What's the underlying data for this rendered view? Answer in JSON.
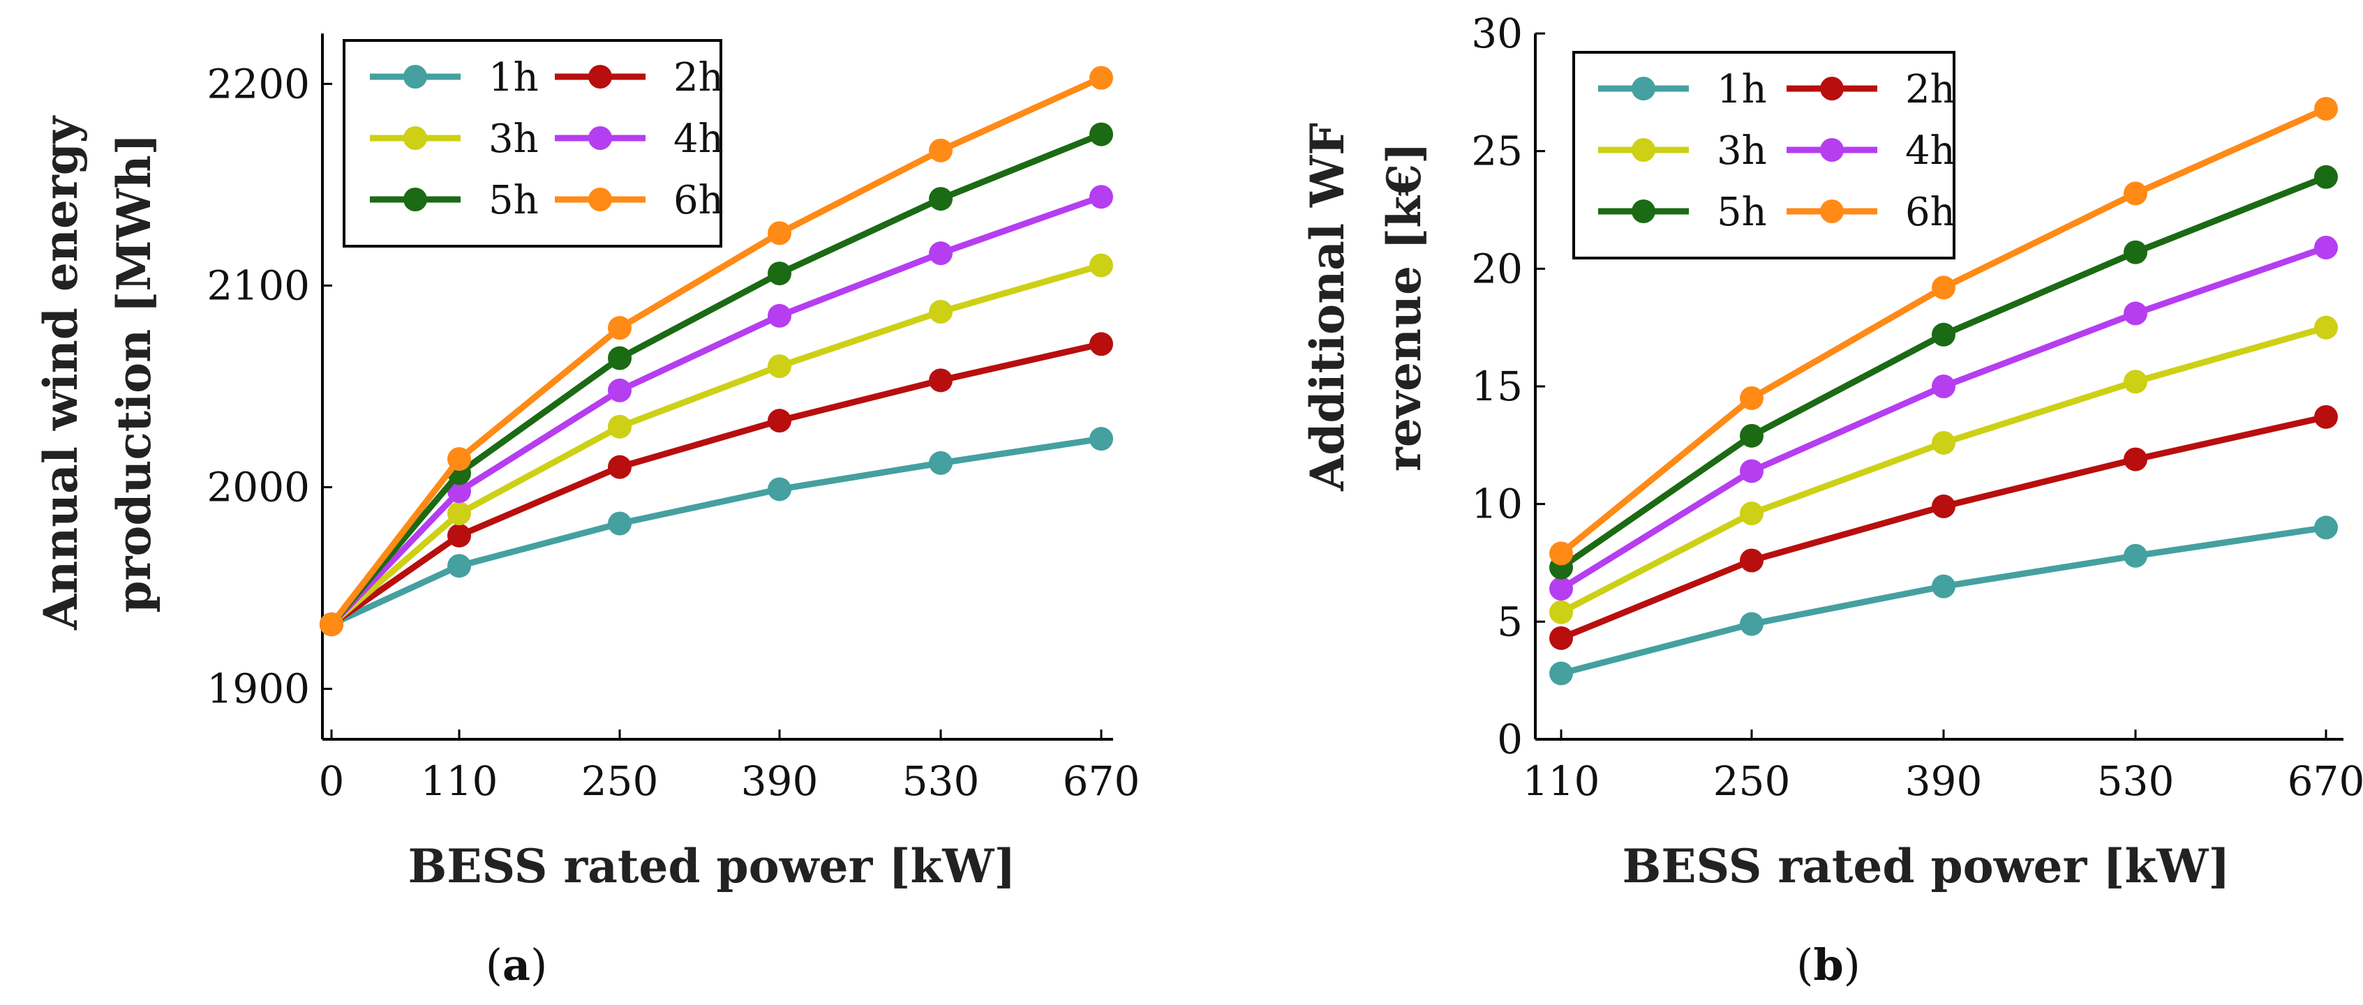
{
  "colors": {
    "1h": "#45a0a0",
    "2h": "#b80e0e",
    "3h": "#cdd015",
    "4h": "#b53ef0",
    "5h": "#1b6a14",
    "6h": "#ff8a16"
  },
  "chart_data": [
    {
      "type": "line",
      "panel_label": "a",
      "title": "",
      "xlabel": "BESS rated power [kW]",
      "ylabel_lines": [
        "Annual wind energy",
        "production [MWh]"
      ],
      "categories": [
        "0",
        "110",
        "250",
        "390",
        "530",
        "670"
      ],
      "ylim": [
        1875,
        2225
      ],
      "yticks": [
        1900,
        2000,
        2100,
        2200
      ],
      "legend_position": "top-left",
      "series": [
        {
          "name": "1h",
          "values": [
            1932,
            1961,
            1982,
            1999,
            2012,
            2024
          ]
        },
        {
          "name": "2h",
          "values": [
            1932,
            1976,
            2010,
            2033,
            2053,
            2071
          ]
        },
        {
          "name": "3h",
          "values": [
            1932,
            1987,
            2030,
            2060,
            2087,
            2110
          ]
        },
        {
          "name": "4h",
          "values": [
            1932,
            1998,
            2048,
            2085,
            2116,
            2144
          ]
        },
        {
          "name": "5h",
          "values": [
            1932,
            2007,
            2064,
            2106,
            2143,
            2175
          ]
        },
        {
          "name": "6h",
          "values": [
            1932,
            2014,
            2079,
            2126,
            2167,
            2203
          ]
        }
      ]
    },
    {
      "type": "line",
      "panel_label": "b",
      "title": "",
      "xlabel": "BESS rated power [kW]",
      "ylabel_lines": [
        "Additional WF",
        "revenue [k€]"
      ],
      "categories": [
        "110",
        "250",
        "390",
        "530",
        "670"
      ],
      "ylim": [
        0,
        30
      ],
      "yticks": [
        0,
        5,
        10,
        15,
        20,
        25,
        30
      ],
      "legend_position": "top-left",
      "series": [
        {
          "name": "1h",
          "values": [
            2.8,
            4.9,
            6.5,
            7.8,
            9.0
          ]
        },
        {
          "name": "2h",
          "values": [
            4.3,
            7.6,
            9.9,
            11.9,
            13.7
          ]
        },
        {
          "name": "3h",
          "values": [
            5.4,
            9.6,
            12.6,
            15.2,
            17.5
          ]
        },
        {
          "name": "4h",
          "values": [
            6.4,
            11.4,
            15.0,
            18.1,
            20.9
          ]
        },
        {
          "name": "5h",
          "values": [
            7.3,
            12.9,
            17.2,
            20.7,
            23.9
          ]
        },
        {
          "name": "6h",
          "values": [
            7.9,
            14.5,
            19.2,
            23.2,
            26.8
          ]
        }
      ]
    }
  ]
}
